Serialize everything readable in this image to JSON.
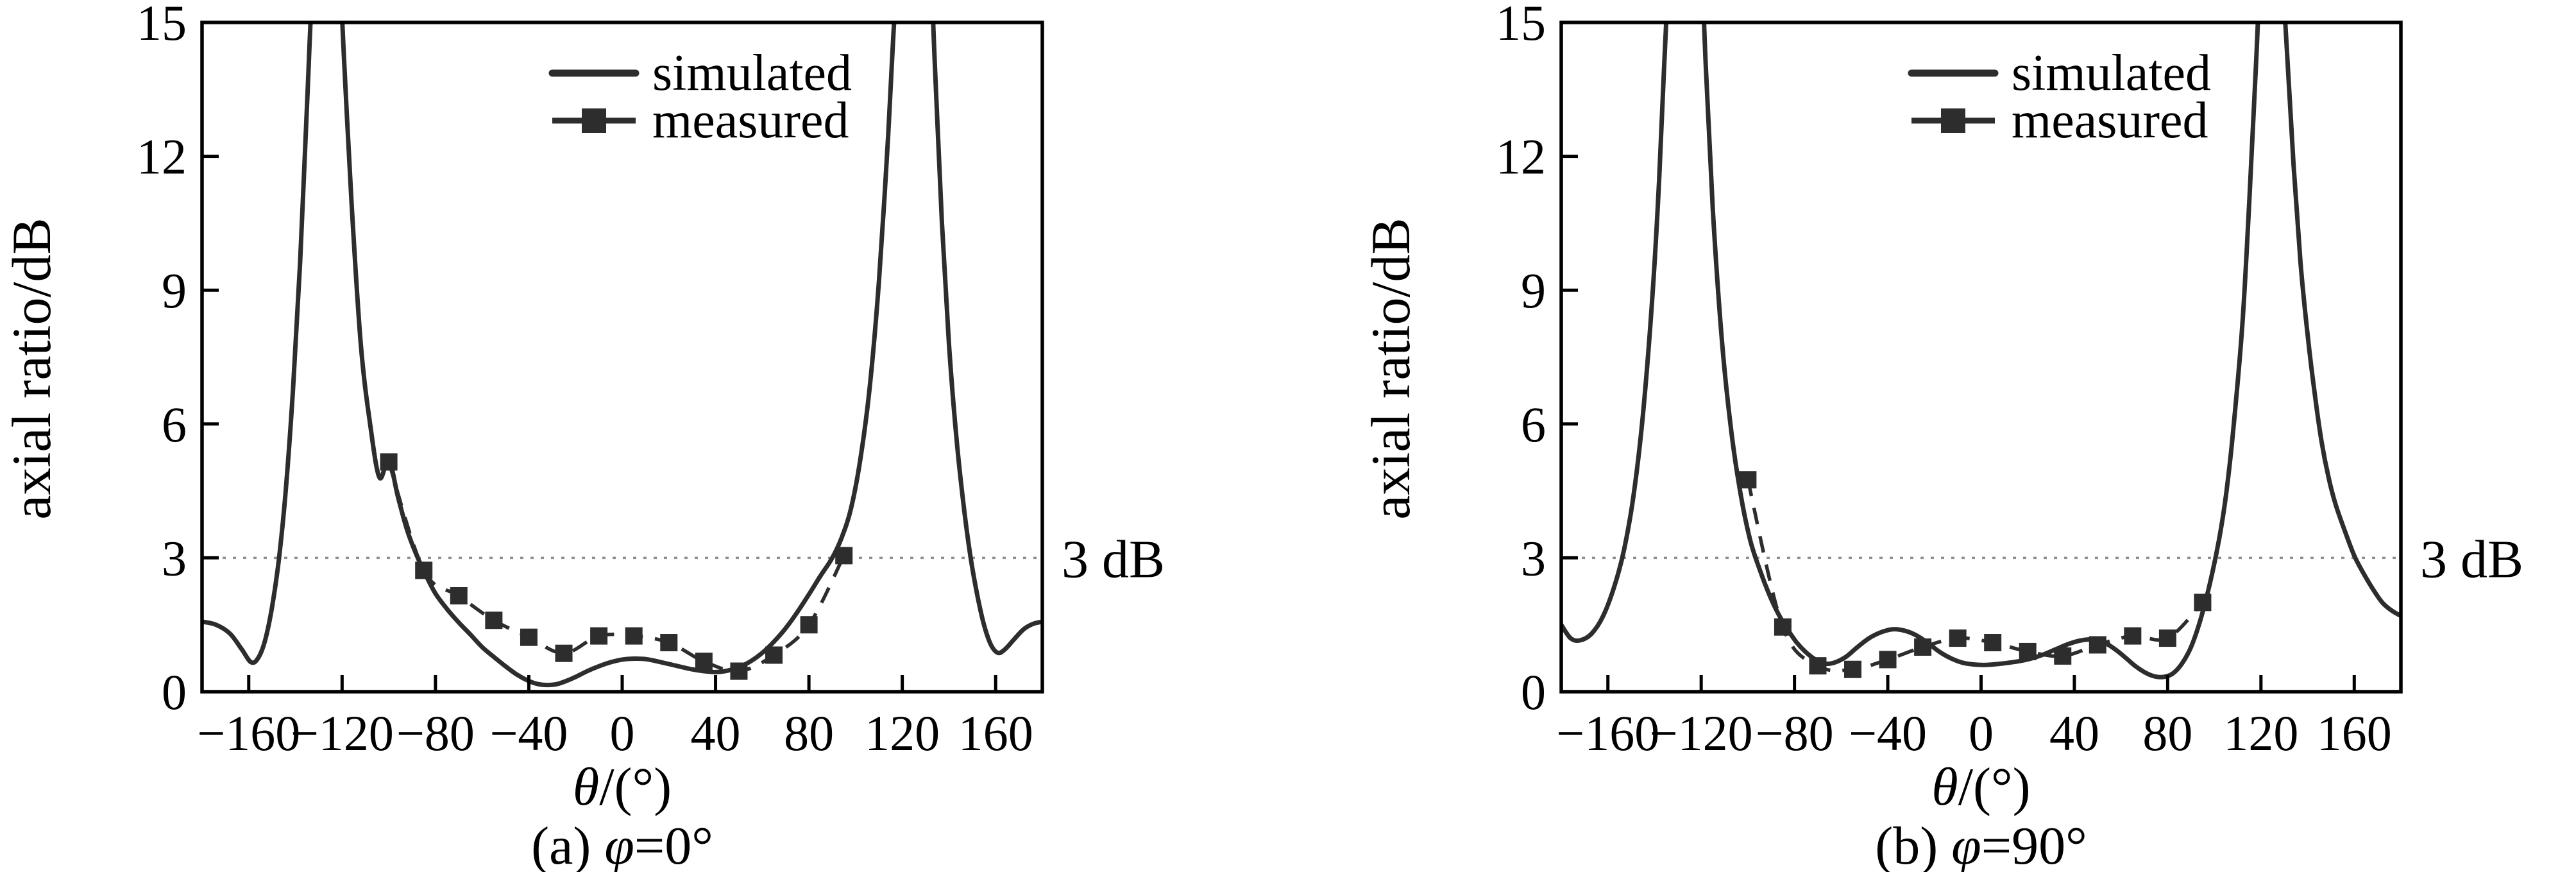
{
  "style": {
    "background": "#ffffff",
    "ink_color": "#2d2d2d",
    "axis_color": "#000000",
    "threshold_color": "#8f8f8f"
  },
  "chart_data": [
    {
      "panel": "a",
      "type": "line",
      "caption": "(a) φ=0°",
      "caption_parts": [
        {
          "t": "(a) "
        },
        {
          "t": "φ",
          "i": 1
        },
        {
          "t": "=0°"
        }
      ],
      "xlabel": "θ/(°)",
      "xlabel_parts": [
        {
          "t": "θ",
          "i": 1
        },
        {
          "t": "/(°)"
        }
      ],
      "ylabel": "axial ratio/dB",
      "xlim": [
        -180,
        180
      ],
      "ylim": [
        0,
        15
      ],
      "x_ticks": [
        -160,
        -120,
        -80,
        -40,
        0,
        40,
        80,
        120,
        160
      ],
      "x_tick_labels": [
        "−160",
        "−120",
        "−80",
        "−40",
        "0",
        "40",
        "80",
        "120",
        "160"
      ],
      "y_ticks": [
        0,
        3,
        6,
        9,
        12,
        15
      ],
      "y_tick_labels": [
        "0",
        "3",
        "6",
        "9",
        "12",
        "15"
      ],
      "grid": false,
      "legend_position": "upper-center",
      "threshold": {
        "value": 3,
        "label": "3 dB"
      },
      "legend": [
        {
          "name": "simulated",
          "style": "solid-line"
        },
        {
          "name": "measured",
          "style": "dashed-line-square-marker"
        }
      ],
      "series": [
        {
          "name": "simulated",
          "points": [
            [
              -180,
              1.57
            ],
            [
              -174,
              1.5
            ],
            [
              -168,
              1.3
            ],
            [
              -163,
              0.95
            ],
            [
              -159,
              0.66
            ],
            [
              -156,
              0.75
            ],
            [
              -153,
              1.15
            ],
            [
              -150,
              1.9
            ],
            [
              -147,
              3.0
            ],
            [
              -144,
              4.6
            ],
            [
              -141,
              6.8
            ],
            [
              -138,
              9.6
            ],
            [
              -135,
              13.2
            ],
            [
              -132,
              16.5
            ],
            [
              -127,
              19
            ],
            [
              -122,
              17
            ],
            [
              -119,
              14
            ],
            [
              -116,
              11
            ],
            [
              -112,
              7.8
            ],
            [
              -108,
              6.0
            ],
            [
              -104,
              4.8
            ],
            [
              -100,
              5.2
            ],
            [
              -96,
              4.35
            ],
            [
              -92,
              3.6
            ],
            [
              -88,
              3.05
            ],
            [
              -84,
              2.6
            ],
            [
              -80,
              2.2
            ],
            [
              -75,
              1.85
            ],
            [
              -70,
              1.55
            ],
            [
              -65,
              1.28
            ],
            [
              -60,
              1.0
            ],
            [
              -55,
              0.78
            ],
            [
              -50,
              0.57
            ],
            [
              -45,
              0.38
            ],
            [
              -40,
              0.24
            ],
            [
              -36,
              0.17
            ],
            [
              -32,
              0.15
            ],
            [
              -28,
              0.17
            ],
            [
              -24,
              0.24
            ],
            [
              -20,
              0.33
            ],
            [
              -15,
              0.46
            ],
            [
              -10,
              0.57
            ],
            [
              -5,
              0.66
            ],
            [
              0,
              0.72
            ],
            [
              5,
              0.74
            ],
            [
              10,
              0.73
            ],
            [
              15,
              0.68
            ],
            [
              20,
              0.62
            ],
            [
              25,
              0.56
            ],
            [
              30,
              0.5
            ],
            [
              35,
              0.46
            ],
            [
              40,
              0.44
            ],
            [
              45,
              0.47
            ],
            [
              50,
              0.55
            ],
            [
              55,
              0.68
            ],
            [
              60,
              0.87
            ],
            [
              65,
              1.12
            ],
            [
              70,
              1.42
            ],
            [
              75,
              1.78
            ],
            [
              80,
              2.18
            ],
            [
              85,
              2.6
            ],
            [
              90,
              3.0
            ],
            [
              94,
              3.45
            ],
            [
              98,
              4.1
            ],
            [
              102,
              5.2
            ],
            [
              106,
              6.8
            ],
            [
              110,
              9.2
            ],
            [
              114,
              12.5
            ],
            [
              117,
              15.5
            ],
            [
              121,
              18.5
            ],
            [
              126,
              19.5
            ],
            [
              131,
              17.5
            ],
            [
              134,
              14
            ],
            [
              137,
              10.5
            ],
            [
              140,
              7.8
            ],
            [
              143,
              5.8
            ],
            [
              146,
              4.3
            ],
            [
              149,
              3.1
            ],
            [
              152,
              2.2
            ],
            [
              155,
              1.5
            ],
            [
              158,
              1.05
            ],
            [
              161,
              0.87
            ],
            [
              164,
              0.95
            ],
            [
              168,
              1.18
            ],
            [
              172,
              1.4
            ],
            [
              176,
              1.52
            ],
            [
              180,
              1.57
            ]
          ]
        },
        {
          "name": "measured",
          "points": [
            [
              -100,
              5.15
            ],
            [
              -85,
              2.72
            ],
            [
              -70,
              2.15
            ],
            [
              -55,
              1.6
            ],
            [
              -40,
              1.22
            ],
            [
              -25,
              0.86
            ],
            [
              -10,
              1.25
            ],
            [
              5,
              1.25
            ],
            [
              20,
              1.1
            ],
            [
              35,
              0.68
            ],
            [
              50,
              0.46
            ],
            [
              65,
              0.82
            ],
            [
              80,
              1.5
            ],
            [
              95,
              3.05
            ]
          ]
        }
      ]
    },
    {
      "panel": "b",
      "type": "line",
      "caption": "(b) φ=90°",
      "caption_parts": [
        {
          "t": "(b) "
        },
        {
          "t": "φ",
          "i": 1
        },
        {
          "t": "=90°"
        }
      ],
      "xlabel": "θ/(°)",
      "xlabel_parts": [
        {
          "t": "θ",
          "i": 1
        },
        {
          "t": "/(°)"
        }
      ],
      "ylabel": "axial ratio/dB",
      "xlim": [
        -180,
        180
      ],
      "ylim": [
        0,
        15
      ],
      "x_ticks": [
        -160,
        -120,
        -80,
        -40,
        0,
        40,
        80,
        120,
        160
      ],
      "x_tick_labels": [
        "−160",
        "−120",
        "−80",
        "−40",
        "0",
        "40",
        "80",
        "120",
        "160"
      ],
      "y_ticks": [
        0,
        3,
        6,
        9,
        12,
        15
      ],
      "y_tick_labels": [
        "0",
        "3",
        "6",
        "9",
        "12",
        "15"
      ],
      "grid": false,
      "legend_position": "upper-center",
      "threshold": {
        "value": 3,
        "label": "3 dB"
      },
      "legend": [
        {
          "name": "simulated",
          "style": "solid-line"
        },
        {
          "name": "measured",
          "style": "dashed-line-square-marker"
        }
      ],
      "series": [
        {
          "name": "simulated",
          "points": [
            [
              -180,
              1.5
            ],
            [
              -176,
              1.2
            ],
            [
              -172,
              1.15
            ],
            [
              -167,
              1.3
            ],
            [
              -162,
              1.7
            ],
            [
              -157,
              2.4
            ],
            [
              -153,
              3.2
            ],
            [
              -149,
              4.4
            ],
            [
              -145,
              6.2
            ],
            [
              -141,
              8.8
            ],
            [
              -138,
              11.5
            ],
            [
              -135,
              15
            ],
            [
              -131,
              18.5
            ],
            [
              -126,
              19.5
            ],
            [
              -121,
              17.5
            ],
            [
              -118,
              14
            ],
            [
              -115,
              10.8
            ],
            [
              -111,
              7.8
            ],
            [
              -107,
              5.8
            ],
            [
              -103,
              4.4
            ],
            [
              -99,
              3.4
            ],
            [
              -95,
              2.75
            ],
            [
              -91,
              2.2
            ],
            [
              -87,
              1.75
            ],
            [
              -83,
              1.4
            ],
            [
              -79,
              1.1
            ],
            [
              -75,
              0.88
            ],
            [
              -71,
              0.72
            ],
            [
              -67,
              0.63
            ],
            [
              -63,
              0.65
            ],
            [
              -58,
              0.78
            ],
            [
              -53,
              1.0
            ],
            [
              -48,
              1.2
            ],
            [
              -43,
              1.33
            ],
            [
              -38,
              1.4
            ],
            [
              -33,
              1.37
            ],
            [
              -28,
              1.27
            ],
            [
              -23,
              1.1
            ],
            [
              -18,
              0.9
            ],
            [
              -13,
              0.75
            ],
            [
              -8,
              0.65
            ],
            [
              -3,
              0.61
            ],
            [
              2,
              0.6
            ],
            [
              7,
              0.62
            ],
            [
              12,
              0.65
            ],
            [
              17,
              0.69
            ],
            [
              22,
              0.75
            ],
            [
              27,
              0.84
            ],
            [
              32,
              0.95
            ],
            [
              37,
              1.06
            ],
            [
              42,
              1.14
            ],
            [
              46,
              1.17
            ],
            [
              50,
              1.15
            ],
            [
              54,
              1.07
            ],
            [
              58,
              0.93
            ],
            [
              62,
              0.76
            ],
            [
              66,
              0.58
            ],
            [
              70,
              0.44
            ],
            [
              74,
              0.35
            ],
            [
              78,
              0.33
            ],
            [
              82,
              0.4
            ],
            [
              86,
              0.62
            ],
            [
              90,
              1.0
            ],
            [
              94,
              1.6
            ],
            [
              98,
              2.4
            ],
            [
              102,
              3.4
            ],
            [
              105,
              4.4
            ],
            [
              108,
              5.8
            ],
            [
              112,
              8.2
            ],
            [
              115,
              11
            ],
            [
              118,
              14.2
            ],
            [
              121,
              17.5
            ],
            [
              125,
              18.5
            ],
            [
              128,
              17
            ],
            [
              131,
              14.5
            ],
            [
              134,
              11.8
            ],
            [
              137,
              9.6
            ],
            [
              140,
              8.0
            ],
            [
              143,
              6.7
            ],
            [
              146,
              5.6
            ],
            [
              149,
              4.8
            ],
            [
              152,
              4.2
            ],
            [
              156,
              3.6
            ],
            [
              160,
              3.05
            ],
            [
              164,
              2.65
            ],
            [
              168,
              2.3
            ],
            [
              172,
              2.0
            ],
            [
              176,
              1.82
            ],
            [
              180,
              1.7
            ]
          ]
        },
        {
          "name": "measured",
          "points": [
            [
              -100,
              4.75
            ],
            [
              -85,
              1.45
            ],
            [
              -70,
              0.58
            ],
            [
              -55,
              0.5
            ],
            [
              -40,
              0.72
            ],
            [
              -25,
              1.0
            ],
            [
              -10,
              1.2
            ],
            [
              5,
              1.1
            ],
            [
              20,
              0.9
            ],
            [
              35,
              0.8
            ],
            [
              50,
              1.05
            ],
            [
              65,
              1.25
            ],
            [
              80,
              1.2
            ],
            [
              95,
              2.0
            ]
          ]
        }
      ]
    }
  ]
}
